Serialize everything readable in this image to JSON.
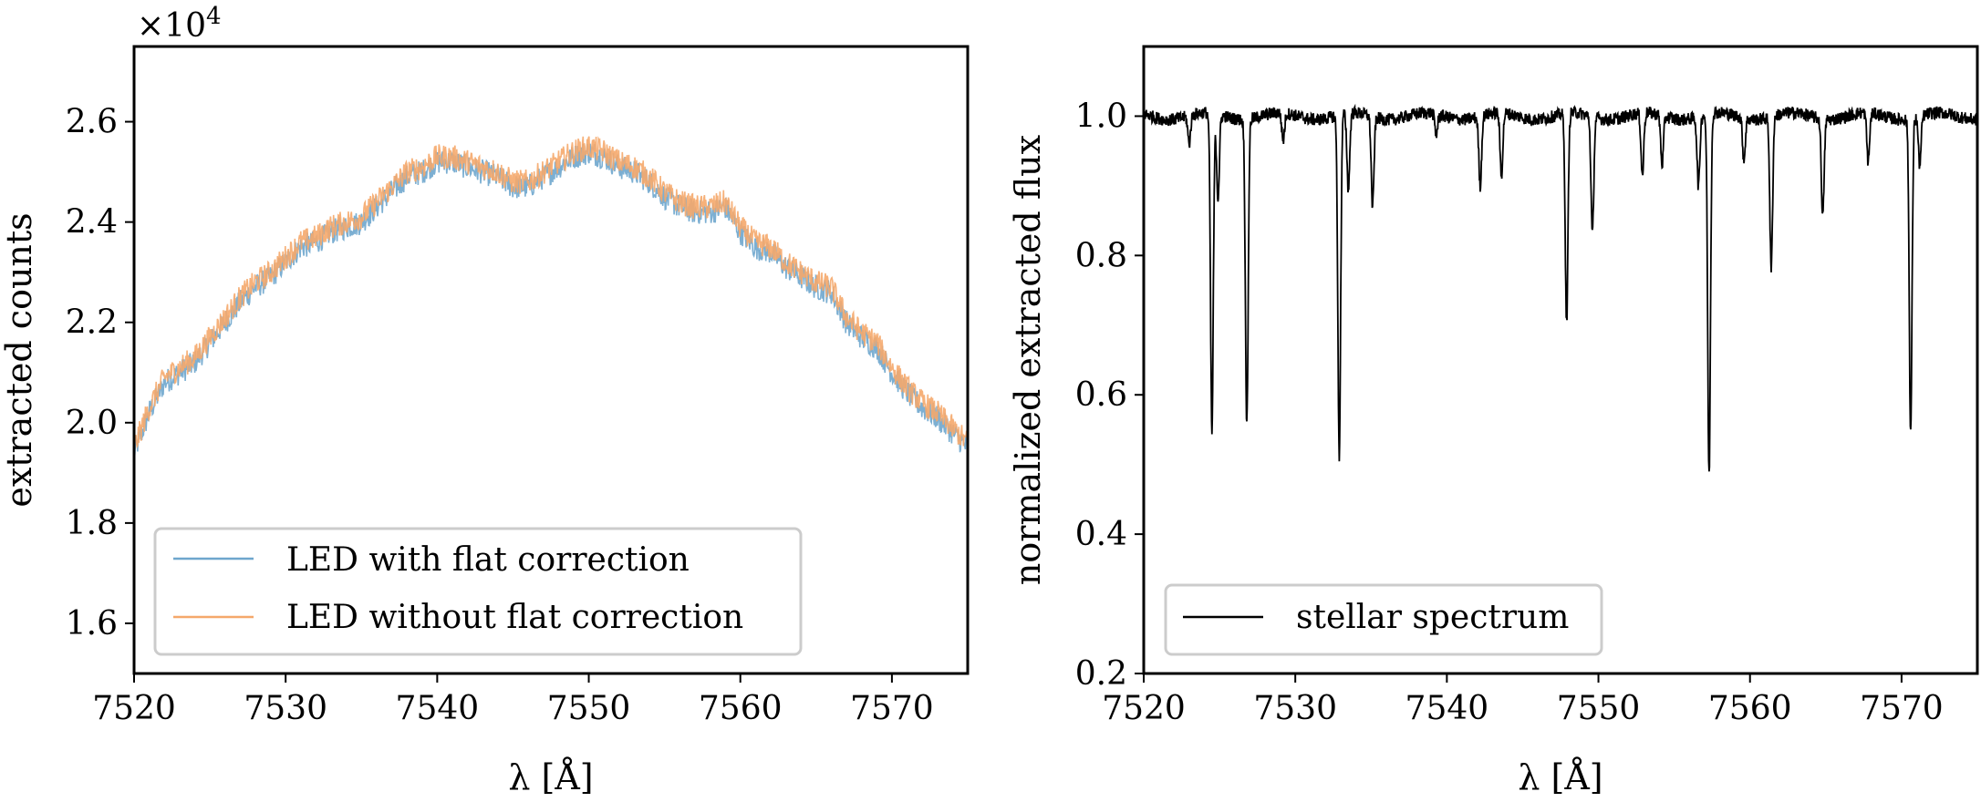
{
  "chart_data": [
    {
      "type": "line",
      "panel": "left",
      "xlabel": "λ [Å]",
      "ylabel": "extracted counts",
      "exponent_label": "×10",
      "exponent_power": "4",
      "xlim": [
        7520,
        7575
      ],
      "ylim": [
        1.5,
        2.75
      ],
      "xticks": [
        7520,
        7530,
        7540,
        7550,
        7560,
        7570
      ],
      "xtick_labels": [
        "7520",
        "7530",
        "7540",
        "7550",
        "7560",
        "7570"
      ],
      "yticks": [
        1.6,
        1.8,
        2.0,
        2.2,
        2.4,
        2.6
      ],
      "ytick_labels": [
        "1.6",
        "1.8",
        "2.0",
        "2.2",
        "2.4",
        "2.6"
      ],
      "legend_position": "lower-center",
      "series": [
        {
          "name": "LED with flat correction",
          "color": "#6ea6cd",
          "x": [
            7520,
            7521,
            7522,
            7523,
            7524,
            7525,
            7526,
            7527,
            7528,
            7529,
            7530,
            7531,
            7532,
            7533,
            7534,
            7535,
            7536,
            7537,
            7538,
            7539,
            7540,
            7541,
            7542,
            7543,
            7544,
            7545,
            7546,
            7547,
            7548,
            7549,
            7550,
            7551,
            7552,
            7553,
            7554,
            7555,
            7556,
            7557,
            7558,
            7559,
            7560,
            7561,
            7562,
            7563,
            7564,
            7565,
            7566,
            7567,
            7568,
            7569,
            7570,
            7571,
            7572,
            7573,
            7574,
            7575
          ],
          "y": [
            1.94,
            2.02,
            2.08,
            2.1,
            2.12,
            2.16,
            2.2,
            2.24,
            2.27,
            2.29,
            2.32,
            2.35,
            2.36,
            2.38,
            2.39,
            2.4,
            2.43,
            2.46,
            2.49,
            2.5,
            2.52,
            2.52,
            2.51,
            2.5,
            2.49,
            2.47,
            2.47,
            2.49,
            2.51,
            2.53,
            2.54,
            2.53,
            2.51,
            2.5,
            2.48,
            2.45,
            2.43,
            2.42,
            2.42,
            2.43,
            2.38,
            2.35,
            2.34,
            2.31,
            2.29,
            2.27,
            2.26,
            2.2,
            2.17,
            2.15,
            2.1,
            2.06,
            2.03,
            2.01,
            1.98,
            1.95
          ]
        },
        {
          "name": "LED without flat correction",
          "color": "#f5a86b",
          "x": [
            7520,
            7521,
            7522,
            7523,
            7524,
            7525,
            7526,
            7527,
            7528,
            7529,
            7530,
            7531,
            7532,
            7533,
            7534,
            7535,
            7536,
            7537,
            7538,
            7539,
            7540,
            7541,
            7542,
            7543,
            7544,
            7545,
            7546,
            7547,
            7548,
            7549,
            7550,
            7551,
            7552,
            7553,
            7554,
            7555,
            7556,
            7557,
            7558,
            7559,
            7560,
            7561,
            7562,
            7563,
            7564,
            7565,
            7566,
            7567,
            7568,
            7569,
            7570,
            7571,
            7572,
            7573,
            7574,
            7575
          ],
          "y": [
            1.95,
            2.03,
            2.09,
            2.11,
            2.13,
            2.17,
            2.21,
            2.25,
            2.28,
            2.3,
            2.33,
            2.36,
            2.37,
            2.39,
            2.4,
            2.41,
            2.44,
            2.47,
            2.5,
            2.51,
            2.53,
            2.53,
            2.52,
            2.51,
            2.5,
            2.48,
            2.48,
            2.5,
            2.52,
            2.54,
            2.55,
            2.54,
            2.52,
            2.51,
            2.49,
            2.46,
            2.44,
            2.43,
            2.43,
            2.44,
            2.39,
            2.36,
            2.35,
            2.32,
            2.3,
            2.28,
            2.27,
            2.21,
            2.18,
            2.16,
            2.11,
            2.07,
            2.04,
            2.02,
            1.99,
            1.96
          ]
        }
      ]
    },
    {
      "type": "line",
      "panel": "right",
      "xlabel": "λ [Å]",
      "ylabel": "normalized extracted flux",
      "xlim": [
        7520,
        7575
      ],
      "ylim": [
        0.2,
        1.1
      ],
      "xticks": [
        7520,
        7530,
        7540,
        7550,
        7560,
        7570
      ],
      "xtick_labels": [
        "7520",
        "7530",
        "7540",
        "7550",
        "7560",
        "7570"
      ],
      "yticks": [
        0.2,
        0.4,
        0.6,
        0.8,
        1.0
      ],
      "ytick_labels": [
        "0.2",
        "0.4",
        "0.6",
        "0.8",
        "1.0"
      ],
      "legend_position": "lower-left",
      "continuum": 1.0,
      "series": [
        {
          "name": "stellar spectrum",
          "color": "#000000",
          "absorption_lines": [
            {
              "x": 7523.0,
              "min": 0.96
            },
            {
              "x": 7524.5,
              "min": 0.54
            },
            {
              "x": 7524.9,
              "min": 0.88
            },
            {
              "x": 7526.8,
              "min": 0.56
            },
            {
              "x": 7529.2,
              "min": 0.96
            },
            {
              "x": 7532.9,
              "min": 0.51
            },
            {
              "x": 7533.5,
              "min": 0.89
            },
            {
              "x": 7535.1,
              "min": 0.87
            },
            {
              "x": 7539.3,
              "min": 0.97
            },
            {
              "x": 7542.2,
              "min": 0.9
            },
            {
              "x": 7543.6,
              "min": 0.91
            },
            {
              "x": 7547.9,
              "min": 0.7
            },
            {
              "x": 7549.6,
              "min": 0.83
            },
            {
              "x": 7552.9,
              "min": 0.91
            },
            {
              "x": 7554.2,
              "min": 0.93
            },
            {
              "x": 7556.6,
              "min": 0.9
            },
            {
              "x": 7557.3,
              "min": 0.48
            },
            {
              "x": 7559.6,
              "min": 0.94
            },
            {
              "x": 7561.4,
              "min": 0.78
            },
            {
              "x": 7564.8,
              "min": 0.86
            },
            {
              "x": 7567.8,
              "min": 0.93
            },
            {
              "x": 7570.6,
              "min": 0.55
            },
            {
              "x": 7571.2,
              "min": 0.93
            }
          ]
        }
      ]
    }
  ]
}
